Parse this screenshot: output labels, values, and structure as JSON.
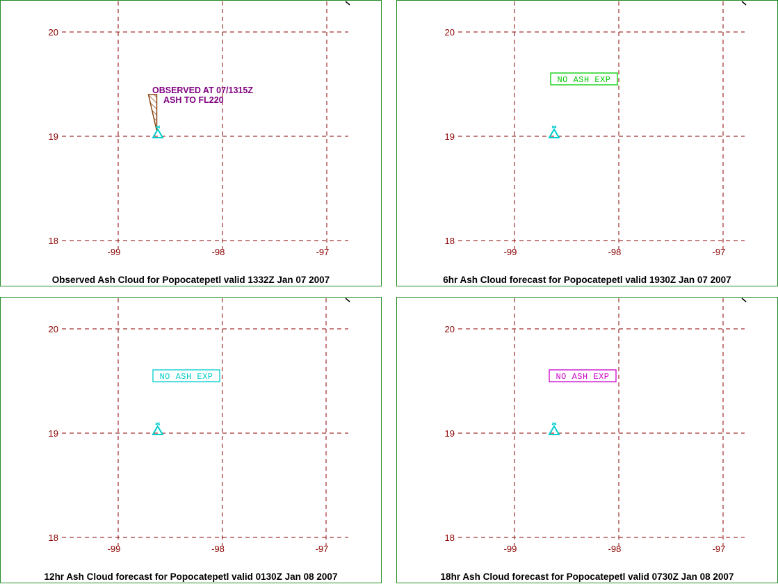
{
  "colors": {
    "grid": "#8b0000",
    "panel_border": "#228b22",
    "volcano": "#00cccc",
    "observed_text": "#800080",
    "ash_hatch": "#8b4513"
  },
  "map": {
    "lat_ticks": [
      "20",
      "19",
      "18"
    ],
    "lon_ticks": [
      "-99",
      "-98",
      "-97"
    ],
    "lat_range": [
      18,
      20
    ],
    "lon_range": [
      -99,
      -97
    ]
  },
  "volcano": {
    "icon": "volcano-triangle-icon",
    "lon": -98.62,
    "lat": 19.02
  },
  "panels": [
    {
      "id": "observed",
      "caption": "Observed Ash Cloud for Popocatepetl valid 1332Z Jan 07 2007",
      "observed": {
        "line1": "OBSERVED AT 07/1315Z",
        "line2": "ASH TO FL220"
      },
      "ash_cloud": [
        [
          -98.71,
          19.4
        ],
        [
          -98.63,
          19.4
        ],
        [
          -98.63,
          19.05
        ]
      ]
    },
    {
      "id": "forecast-6hr",
      "caption": "6hr Ash Cloud forecast for Popocatepetl valid 1930Z Jan 07 2007",
      "status_label": "NO ASH EXP",
      "status_color": "#00cc00"
    },
    {
      "id": "forecast-12hr",
      "caption": "12hr Ash Cloud forecast for Popocatepetl valid 0130Z Jan 08 2007",
      "status_label": "NO ASH EXP",
      "status_color": "#00cccc"
    },
    {
      "id": "forecast-18hr",
      "caption": "18hr Ash Cloud forecast for Popocatepetl valid 0730Z Jan 08 2007",
      "status_label": "NO ASH EXP",
      "status_color": "#cc00cc"
    }
  ]
}
